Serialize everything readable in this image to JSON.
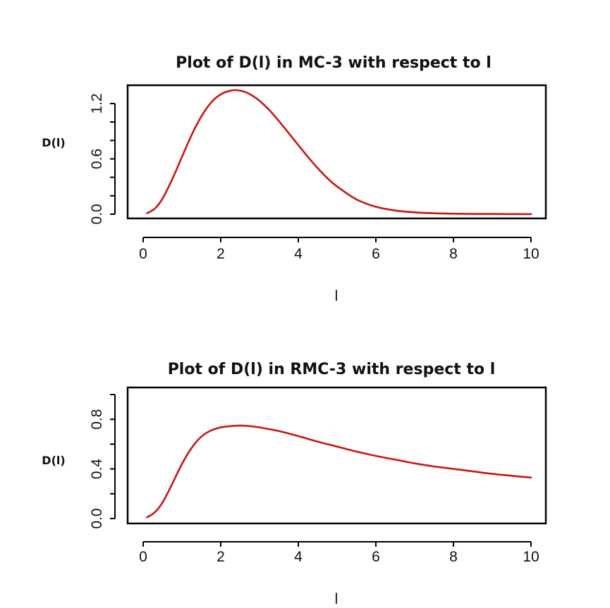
{
  "colors": {
    "line": "#cc1414"
  },
  "chart_data": [
    {
      "type": "line",
      "title": "Plot of D(l) in MC-3 with respect to l",
      "xlabel": "l",
      "ylabel": "D(l)",
      "xlim": [
        0.1,
        10
      ],
      "ylim": [
        0,
        1.35
      ],
      "grid": false,
      "legend": "none",
      "xticks": [
        0,
        2,
        4,
        6,
        8,
        10
      ],
      "xtick_labels": [
        "0",
        "2",
        "4",
        "6",
        "8",
        "10"
      ],
      "yticks": [
        0,
        0.2,
        0.4,
        0.6,
        0.8,
        1.0,
        1.2
      ],
      "ytick_labels": [
        "0.0",
        "0.6",
        "1.2"
      ],
      "ytick_labeled": [
        0,
        0.6,
        1.2
      ],
      "series": [
        {
          "x": [
            0.1,
            0.3,
            0.5,
            0.75,
            1.0,
            1.25,
            1.5,
            1.75,
            2.0,
            2.25,
            2.4,
            2.6,
            2.8,
            3.0,
            3.25,
            3.5,
            3.75,
            4.0,
            4.25,
            4.5,
            4.75,
            5.0,
            5.5,
            6.0,
            6.5,
            7.0,
            7.5,
            8.0,
            9.0,
            10.0
          ],
          "values": [
            0.01,
            0.06,
            0.17,
            0.38,
            0.62,
            0.86,
            1.06,
            1.21,
            1.3,
            1.34,
            1.345,
            1.33,
            1.29,
            1.23,
            1.13,
            1.01,
            0.88,
            0.75,
            0.62,
            0.5,
            0.39,
            0.3,
            0.16,
            0.08,
            0.04,
            0.02,
            0.01,
            0.005,
            0.002,
            0.001
          ]
        }
      ]
    },
    {
      "type": "line",
      "title": "Plot of D(l) in RMC-3 with respect to l",
      "xlabel": "l",
      "ylabel": "D(l)",
      "xlim": [
        0.1,
        10
      ],
      "ylim": [
        0,
        1.0
      ],
      "grid": false,
      "legend": "none",
      "xticks": [
        0,
        2,
        4,
        6,
        8,
        10
      ],
      "xtick_labels": [
        "0",
        "2",
        "4",
        "6",
        "8",
        "10"
      ],
      "yticks": [
        0,
        0.2,
        0.4,
        0.6,
        0.8,
        1.0
      ],
      "ytick_labels": [
        "0.0",
        "0.4",
        "0.8"
      ],
      "ytick_labeled": [
        0,
        0.4,
        0.8
      ],
      "series": [
        {
          "x": [
            0.1,
            0.3,
            0.5,
            0.75,
            1.0,
            1.25,
            1.5,
            1.75,
            2.0,
            2.25,
            2.5,
            2.75,
            3.0,
            3.5,
            4.0,
            4.5,
            5.0,
            5.5,
            6.0,
            6.5,
            7.0,
            7.5,
            8.0,
            8.5,
            9.0,
            9.5,
            10.0
          ],
          "values": [
            0.01,
            0.05,
            0.13,
            0.28,
            0.44,
            0.57,
            0.66,
            0.71,
            0.735,
            0.745,
            0.75,
            0.745,
            0.735,
            0.705,
            0.665,
            0.62,
            0.58,
            0.54,
            0.505,
            0.475,
            0.445,
            0.42,
            0.4,
            0.38,
            0.36,
            0.345,
            0.33
          ]
        }
      ]
    }
  ]
}
